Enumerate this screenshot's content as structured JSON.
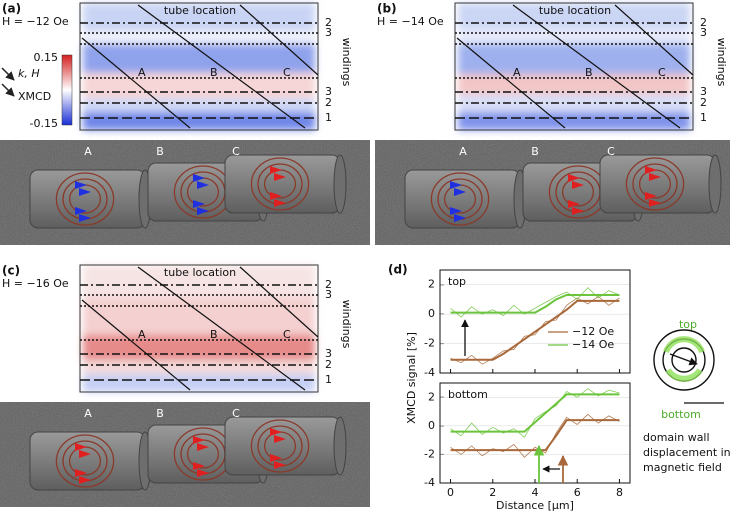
{
  "panels": [
    {
      "label": "(a)",
      "field": "H = −12 Oe",
      "location_label": "tube location",
      "windings_label": "windings",
      "winding_numbers": [
        "2",
        "3",
        "3",
        "2",
        "1"
      ],
      "tubes": [
        "A",
        "B",
        "C"
      ],
      "photo_labels": [
        "A",
        "B",
        "C"
      ]
    },
    {
      "label": "(b)",
      "field": "H = −14 Oe",
      "location_label": "tube location",
      "windings_label": "windings",
      "winding_numbers": [
        "2",
        "3",
        "3",
        "2",
        "1"
      ],
      "tubes": [
        "A",
        "B",
        "C"
      ],
      "photo_labels": [
        "A",
        "B",
        "C"
      ]
    },
    {
      "label": "(c)",
      "field": "H = −16 Oe",
      "location_label": "tube location",
      "windings_label": "windings",
      "winding_numbers": [
        "2",
        "3",
        "3",
        "2",
        "1"
      ],
      "tubes": [
        "A",
        "B",
        "C"
      ],
      "photo_labels": [
        "A",
        "B",
        "C"
      ]
    }
  ],
  "colorbar": {
    "max": "0.15",
    "min": "-0.15",
    "axis_label": "k, H",
    "signal_label": "XMCD"
  },
  "panel_d_label": "(d)",
  "schematic": {
    "top": "top",
    "bottom": "bottom",
    "caption": [
      "domain wall",
      "displacement in",
      "magnetic field"
    ]
  },
  "chart_data": [
    {
      "type": "line",
      "label": "top",
      "ylabel": "XMCD signal [%]",
      "x": [
        0,
        0.5,
        1,
        1.5,
        2,
        2.5,
        3,
        3.5,
        4,
        4.5,
        5,
        5.5,
        6,
        6.5,
        7,
        7.5,
        8
      ],
      "series": [
        {
          "name": "−12 Oe",
          "color": "#a8683a",
          "values": [
            -3.0,
            -3.3,
            -2.8,
            -3.4,
            -3.0,
            -2.5,
            -2.4,
            -1.5,
            -1.4,
            -0.5,
            -0.4,
            0.6,
            1.1,
            0.7,
            1.2,
            0.6,
            1.1
          ],
          "fit": [
            -3.1,
            -3.1,
            -3.1,
            -3.1,
            -3.1,
            -2.7,
            -2.2,
            -1.7,
            -1.2,
            -0.7,
            -0.2,
            0.3,
            0.9,
            0.9,
            0.9,
            0.9,
            0.9
          ]
        },
        {
          "name": "−14 Oe",
          "color": "#6cc43c",
          "values": [
            0.4,
            -0.2,
            0.5,
            0.0,
            0.3,
            -0.1,
            0.6,
            0.0,
            0.4,
            0.8,
            1.2,
            1.5,
            1.0,
            1.8,
            1.1,
            1.6,
            1.3
          ],
          "fit": [
            0.1,
            0.1,
            0.1,
            0.1,
            0.1,
            0.1,
            0.1,
            0.1,
            0.1,
            0.5,
            1.0,
            1.3,
            1.3,
            1.3,
            1.3,
            1.3,
            1.3
          ]
        }
      ],
      "xlim": [
        -0.5,
        8.5
      ],
      "xticks": [
        0,
        2,
        4,
        6,
        8
      ],
      "ylim": [
        -4,
        3
      ],
      "yticks": [
        -4,
        -2,
        0,
        2
      ]
    },
    {
      "type": "line",
      "label": "bottom",
      "xlabel": "Distance [μm]",
      "x": [
        0,
        0.5,
        1,
        1.5,
        2,
        2.5,
        3,
        3.5,
        4,
        4.5,
        5,
        5.5,
        6,
        6.5,
        7,
        7.5,
        8
      ],
      "series": [
        {
          "color": "#a8683a",
          "values": [
            -1.5,
            -2.0,
            -1.4,
            -2.1,
            -1.6,
            -1.8,
            -1.3,
            -2.2,
            -1.5,
            -1.9,
            -0.5,
            0.6,
            0.1,
            0.8,
            0.2,
            0.7,
            0.3
          ],
          "fit": [
            -1.7,
            -1.7,
            -1.7,
            -1.7,
            -1.7,
            -1.7,
            -1.7,
            -1.7,
            -1.7,
            -1.7,
            -0.7,
            0.4,
            0.4,
            0.4,
            0.4,
            0.4,
            0.4
          ]
        },
        {
          "color": "#6cc43c",
          "values": [
            -0.2,
            -0.7,
            0.2,
            -0.6,
            -0.1,
            -0.5,
            -0.2,
            -0.8,
            0.5,
            1.0,
            1.4,
            2.4,
            2.0,
            2.6,
            2.1,
            2.5,
            2.3
          ],
          "fit": [
            -0.4,
            -0.4,
            -0.4,
            -0.4,
            -0.4,
            -0.4,
            -0.4,
            -0.4,
            0.25,
            0.9,
            1.55,
            2.2,
            2.2,
            2.2,
            2.2,
            2.2,
            2.2
          ]
        }
      ],
      "xlim": [
        -0.5,
        8.5
      ],
      "xticks": [
        0,
        2,
        4,
        6,
        8
      ],
      "ylim": [
        -4,
        3
      ],
      "yticks": [
        -4,
        -2,
        0,
        2
      ]
    }
  ]
}
